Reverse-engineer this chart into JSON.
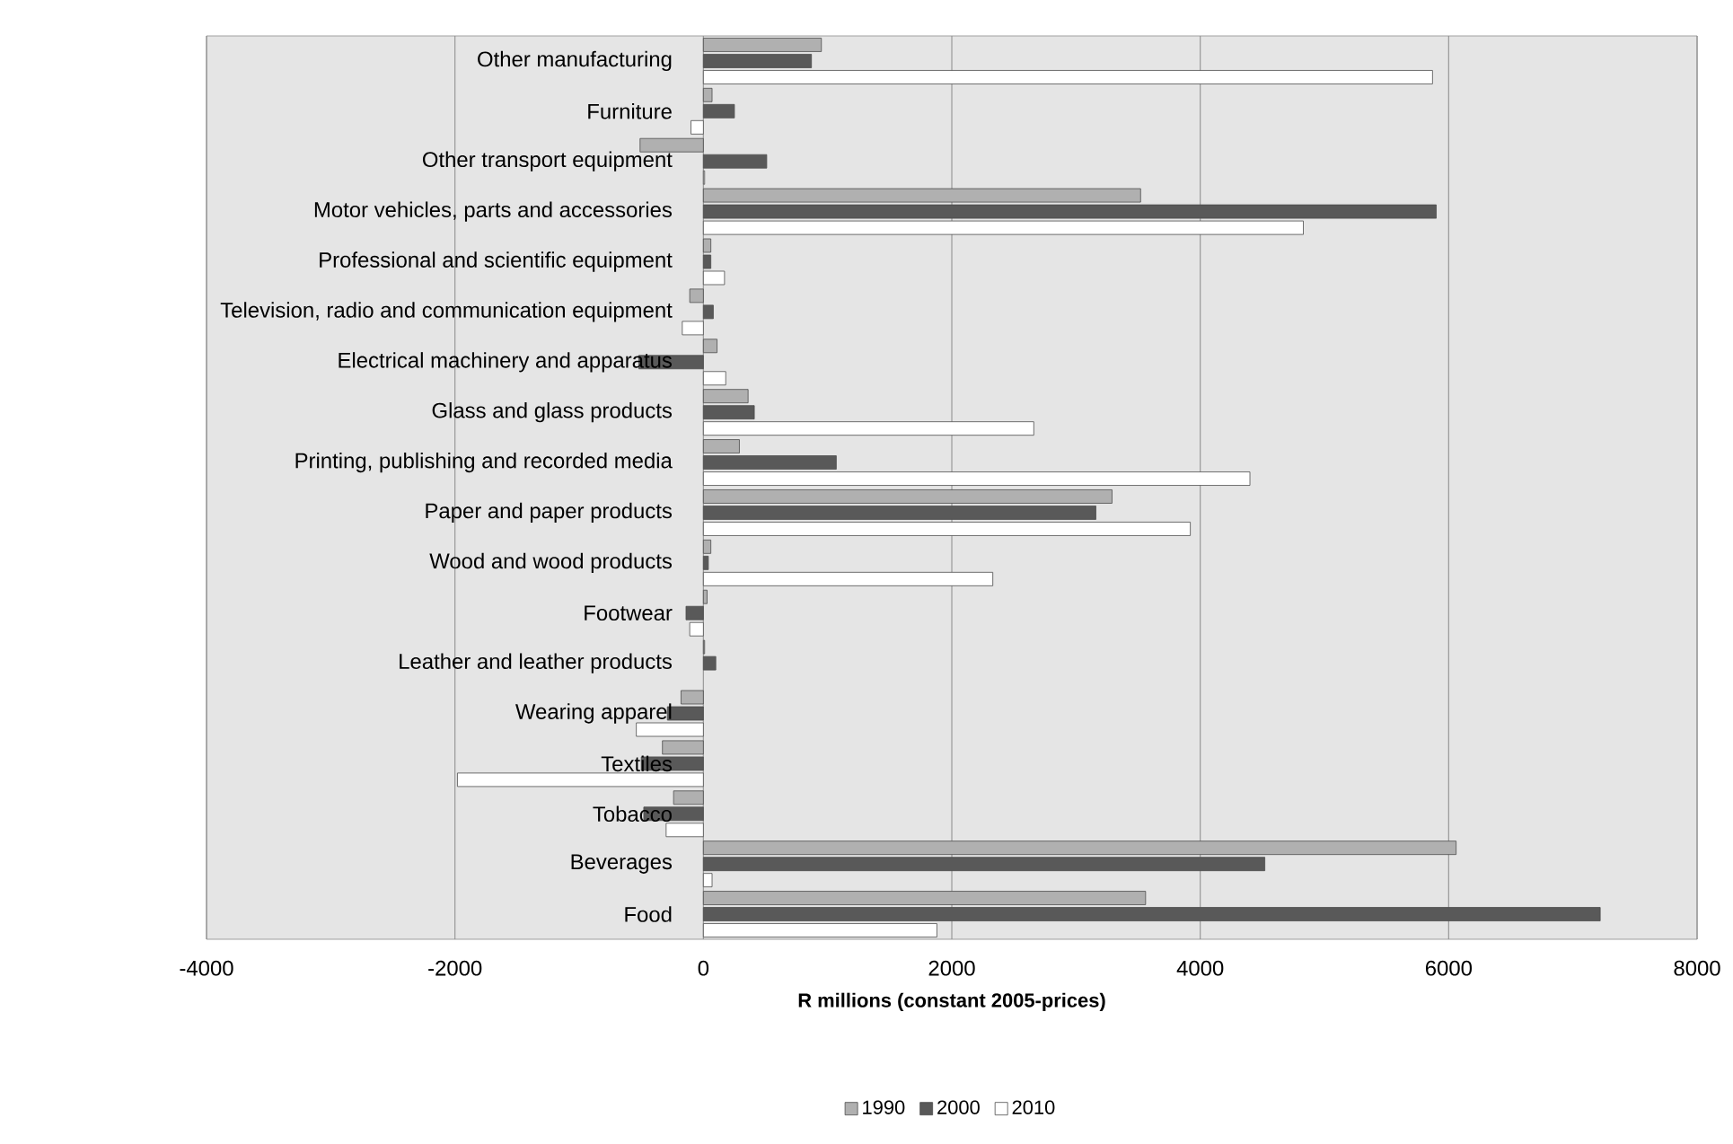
{
  "chart_data": {
    "type": "bar",
    "orientation": "horizontal",
    "categories": [
      "Other manufacturing",
      "Furniture",
      "Other transport equipment",
      "Motor vehicles, parts and accessories",
      "Professional and scientific equipment",
      "Television, radio and communication equipment",
      "Electrical machinery and apparatus",
      "Glass and glass products",
      "Printing, publishing and recorded media",
      "Paper and paper products",
      "Wood and wood products",
      "Footwear",
      "Leather and leather products",
      "Wearing apparel",
      "Textiles",
      "Tobacco",
      "Beverages",
      "Food"
    ],
    "series": [
      {
        "name": "1990",
        "color": "#b0b0b0",
        "values": [
          950,
          70,
          -510,
          3520,
          60,
          -110,
          110,
          360,
          290,
          3290,
          60,
          30,
          10,
          -180,
          -330,
          -240,
          6060,
          3560
        ]
      },
      {
        "name": "2000",
        "color": "#595959",
        "values": [
          870,
          250,
          510,
          5900,
          60,
          80,
          -520,
          410,
          1070,
          3160,
          40,
          -140,
          100,
          -290,
          -500,
          -480,
          4520,
          7220
        ]
      },
      {
        "name": "2010",
        "color": "#ffffff",
        "values": [
          5870,
          -100,
          10,
          4830,
          170,
          -170,
          180,
          2660,
          4400,
          3920,
          2330,
          -110,
          null,
          -540,
          -1980,
          -300,
          70,
          1880
        ]
      }
    ],
    "xlim": [
      -4000,
      8000
    ],
    "xticks": [
      -4000,
      -2000,
      0,
      2000,
      4000,
      6000,
      8000
    ],
    "xlabel": "R millions (constant 2005-prices)",
    "grid": "x",
    "legend": "bottom"
  }
}
